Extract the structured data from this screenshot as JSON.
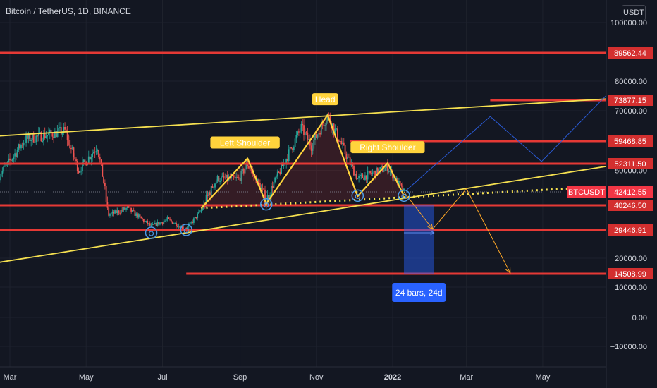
{
  "header": {
    "title": "Bitcoin / TetherUS, 1D, BINANCE",
    "currency": "USDT"
  },
  "colors": {
    "background": "#131722",
    "grid": "#1e222d",
    "candle_up": "#26a69a",
    "candle_down": "#ef5350",
    "level": "#e53935",
    "channel": "#f5e050",
    "pattern": "#ffd33c",
    "projection_blue": "#2a5bd7",
    "projection_orange": "#ffa726",
    "circle": "#4a9be8",
    "axis_text": "#d1d4dc"
  },
  "chart_data": {
    "type": "candlestick",
    "y_scale": "log",
    "ylim": [
      -10000,
      100000
    ],
    "y_ticks": [
      {
        "value": 100000,
        "label": "100000.00"
      },
      {
        "value": 80000,
        "label": "80000.00"
      },
      {
        "value": 70000,
        "label": "70000.00"
      },
      {
        "value": 50000,
        "label": "50000.00"
      },
      {
        "value": 20000,
        "label": "20000.00"
      },
      {
        "value": 10000,
        "label": "10000.00"
      },
      {
        "value": 0,
        "label": "0.00"
      },
      {
        "value": -10000,
        "label": "−10000.00"
      }
    ],
    "x_ticks": [
      {
        "date": "2021-03-01",
        "label": "Mar",
        "bold": false
      },
      {
        "date": "2021-05-01",
        "label": "May",
        "bold": false
      },
      {
        "date": "2021-07-01",
        "label": "Jul",
        "bold": false
      },
      {
        "date": "2021-09-01",
        "label": "Sep",
        "bold": false
      },
      {
        "date": "2021-11-01",
        "label": "Nov",
        "bold": false
      },
      {
        "date": "2022-01-01",
        "label": "2022",
        "bold": true
      },
      {
        "date": "2022-03-01",
        "label": "Mar",
        "bold": false
      },
      {
        "date": "2022-05-01",
        "label": "May",
        "bold": false
      }
    ],
    "price_anchors": [
      [
        "2021-02-20",
        48000
      ],
      [
        "2021-03-13",
        60000
      ],
      [
        "2021-04-14",
        63000
      ],
      [
        "2021-04-25",
        50000
      ],
      [
        "2021-05-10",
        58000
      ],
      [
        "2021-05-19",
        36000
      ],
      [
        "2021-06-03",
        39000
      ],
      [
        "2021-06-22",
        31000
      ],
      [
        "2021-07-05",
        34000
      ],
      [
        "2021-07-20",
        29800
      ],
      [
        "2021-08-14",
        47000
      ],
      [
        "2021-08-31",
        47000
      ],
      [
        "2021-09-07",
        52000
      ],
      [
        "2021-09-22",
        40500
      ],
      [
        "2021-10-20",
        64000
      ],
      [
        "2021-10-28",
        58000
      ],
      [
        "2021-11-10",
        68500
      ],
      [
        "2021-11-26",
        54000
      ],
      [
        "2021-12-04",
        47000
      ],
      [
        "2021-12-28",
        51000
      ],
      [
        "2022-01-10",
        42400
      ]
    ],
    "horizontal_levels": [
      {
        "value": 89562.44,
        "label": "89562.44",
        "start": "2021-02-15"
      },
      {
        "value": 73877.15,
        "label": "73877.15",
        "start": "2022-03-20"
      },
      {
        "value": 59468.85,
        "label": "59468.85",
        "start": "2021-11-28"
      },
      {
        "value": 52311.5,
        "label": "52311.50",
        "start": "2021-02-15"
      },
      {
        "value": 40246.5,
        "label": "40246.50",
        "start": "2021-02-15"
      },
      {
        "value": 29446.91,
        "label": "29446.91",
        "start": "2021-02-15"
      },
      {
        "value": 14508.99,
        "label": "14508.99",
        "start": "2021-07-20"
      }
    ],
    "current_price": {
      "symbol": "BTCUSDT",
      "value": 42412.55,
      "label": "42412.55"
    },
    "channel_upper": [
      [
        "2021-02-10",
        61000
      ],
      [
        "2022-06-30",
        74500
      ]
    ],
    "channel_lower": [
      [
        "2021-02-10",
        17800
      ],
      [
        "2022-06-30",
        52000
      ]
    ],
    "neckline": [
      [
        "2021-08-01",
        39000
      ],
      [
        "2022-06-30",
        44500
      ]
    ],
    "pattern_path": [
      [
        "2021-08-01",
        39000
      ],
      [
        "2021-09-07",
        54000
      ],
      [
        "2021-09-22",
        40500
      ],
      [
        "2021-11-10",
        68500
      ],
      [
        "2021-12-04",
        41700
      ],
      [
        "2021-12-28",
        52500
      ],
      [
        "2022-01-10",
        41800
      ]
    ],
    "pattern_labels": [
      {
        "text": "Left Shoulder",
        "date": "2021-09-05",
        "value": 54000
      },
      {
        "text": "Head",
        "date": "2021-11-08",
        "value": 68500
      },
      {
        "text": "Right Shoulder",
        "date": "2021-12-28",
        "value": 52500
      }
    ],
    "circles": [
      [
        "2021-06-22",
        28500
      ],
      [
        "2021-07-20",
        29500
      ],
      [
        "2021-09-22",
        40400
      ],
      [
        "2021-12-04",
        41800
      ],
      [
        "2022-01-10",
        41800
      ]
    ],
    "projection_blue": [
      [
        "2022-01-12",
        43000
      ],
      [
        "2022-03-20",
        68000
      ],
      [
        "2022-04-30",
        53000
      ],
      [
        "2022-07-02",
        80000
      ]
    ],
    "projection_orange": [
      [
        "2022-01-10",
        42400
      ],
      [
        "2022-02-02",
        29800
      ],
      [
        "2022-03-01",
        43500
      ],
      [
        "2022-04-05",
        14800
      ]
    ],
    "date_range": {
      "start": "2022-01-10",
      "end": "2022-02-03",
      "top": 40246.5,
      "bottom": 14508.99,
      "label": "24 bars, 24d"
    }
  }
}
